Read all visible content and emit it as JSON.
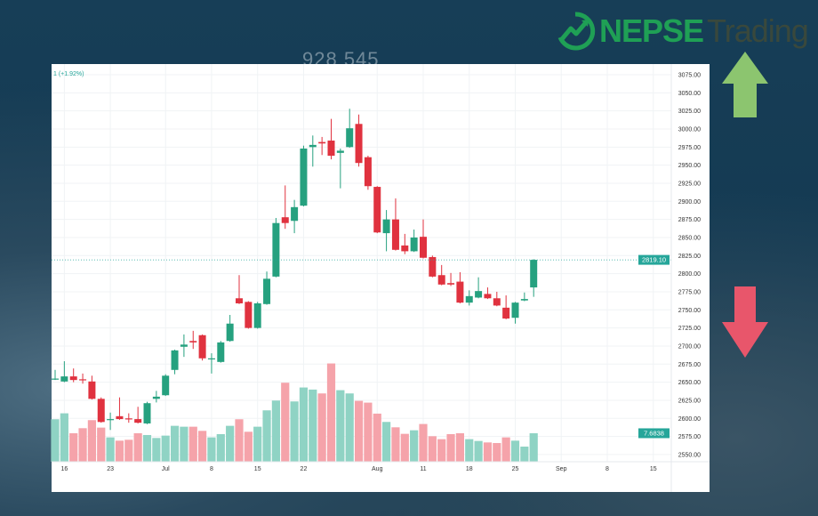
{
  "brand": {
    "name_bold": "NEPSE",
    "name_light": "Trading",
    "logo_icon": "circle-trend-arrow-icon",
    "brand_color": "#1fa055"
  },
  "watermark": "928 545",
  "header": {
    "change_text": "1 (+1.92%)"
  },
  "decor": {
    "up_arrow_color": "#8cc56f",
    "down_arrow_color": "#e8566b"
  },
  "chart_data": {
    "type": "candlestick",
    "title": "",
    "xlabel": "",
    "ylabel": "",
    "ylim": [
      2540,
      3085
    ],
    "grid": true,
    "colors": {
      "up": "#26a17f",
      "down": "#e0323f",
      "vol_up": "#8fd3c4",
      "vol_down": "#f5a3aa"
    },
    "y_ticks": [
      2550,
      2575,
      2600,
      2625,
      2650,
      2675,
      2700,
      2725,
      2750,
      2775,
      2800,
      2825,
      2850,
      2875,
      2900,
      2925,
      2950,
      2975,
      3000,
      3025,
      3050,
      3075
    ],
    "x_ticks": [
      {
        "label": "16",
        "index": 1
      },
      {
        "label": "23",
        "index": 6
      },
      {
        "label": "Jul",
        "index": 12
      },
      {
        "label": "8",
        "index": 17
      },
      {
        "label": "15",
        "index": 22
      },
      {
        "label": "22",
        "index": 27
      },
      {
        "label": "Aug",
        "index": 35
      },
      {
        "label": "11",
        "index": 40
      },
      {
        "label": "18",
        "index": 45
      },
      {
        "label": "25",
        "index": 50
      },
      {
        "label": "Sep",
        "index": 55
      },
      {
        "label": "8",
        "index": 60
      },
      {
        "label": "15",
        "index": 65
      }
    ],
    "last_price_label": "2819.10",
    "last_price": 2819.1,
    "last_volume_label": "7.6838",
    "ohlc": [
      [
        2654,
        2667,
        2653,
        2655
      ],
      [
        2651,
        2679,
        2650,
        2658
      ],
      [
        2658,
        2669,
        2650,
        2653
      ],
      [
        2654,
        2662,
        2648,
        2653
      ],
      [
        2651,
        2659,
        2626,
        2627
      ],
      [
        2627,
        2629,
        2594,
        2595
      ],
      [
        2598,
        2608,
        2584,
        2599
      ],
      [
        2603,
        2629,
        2598,
        2599
      ],
      [
        2600,
        2607,
        2594,
        2599
      ],
      [
        2599,
        2616,
        2593,
        2594
      ],
      [
        2593,
        2623,
        2592,
        2621
      ],
      [
        2627,
        2638,
        2622,
        2630
      ],
      [
        2632,
        2661,
        2631,
        2659
      ],
      [
        2667,
        2695,
        2661,
        2694
      ],
      [
        2699,
        2716,
        2685,
        2702
      ],
      [
        2707,
        2721,
        2696,
        2705
      ],
      [
        2715,
        2716,
        2680,
        2683
      ],
      [
        2683,
        2690,
        2662,
        2683
      ],
      [
        2678,
        2707,
        2677,
        2705
      ],
      [
        2707,
        2743,
        2706,
        2731
      ],
      [
        2766,
        2798,
        2758,
        2759
      ],
      [
        2761,
        2762,
        2724,
        2725
      ],
      [
        2725,
        2761,
        2724,
        2759
      ],
      [
        2758,
        2803,
        2757,
        2793
      ],
      [
        2796,
        2877,
        2795,
        2870
      ],
      [
        2878,
        2922,
        2862,
        2870
      ],
      [
        2873,
        2902,
        2856,
        2892
      ],
      [
        2894,
        2977,
        2893,
        2973
      ],
      [
        2975,
        2991,
        2948,
        2978
      ],
      [
        2982,
        2989,
        2964,
        2980
      ],
      [
        2984,
        3014,
        2958,
        2963
      ],
      [
        2967,
        2973,
        2918,
        2970
      ],
      [
        2975,
        3028,
        2974,
        3001
      ],
      [
        3007,
        3020,
        2948,
        2953
      ],
      [
        2961,
        2963,
        2916,
        2921
      ],
      [
        2920,
        2921,
        2856,
        2857
      ],
      [
        2856,
        2888,
        2831,
        2875
      ],
      [
        2875,
        2904,
        2832,
        2833
      ],
      [
        2839,
        2855,
        2827,
        2831
      ],
      [
        2831,
        2861,
        2830,
        2850
      ],
      [
        2851,
        2875,
        2821,
        2822
      ],
      [
        2823,
        2825,
        2795,
        2796
      ],
      [
        2798,
        2812,
        2784,
        2785
      ],
      [
        2787,
        2801,
        2783,
        2785
      ],
      [
        2789,
        2802,
        2759,
        2760
      ],
      [
        2760,
        2777,
        2756,
        2769
      ],
      [
        2767,
        2795,
        2766,
        2776
      ],
      [
        2772,
        2781,
        2765,
        2766
      ],
      [
        2766,
        2775,
        2755,
        2756
      ],
      [
        2753,
        2770,
        2737,
        2738
      ],
      [
        2739,
        2761,
        2731,
        2760
      ],
      [
        2763,
        2774,
        2762,
        2765
      ],
      [
        2781,
        2820,
        2768,
        2819.1
      ]
    ],
    "volume": [
      11.45,
      13.05,
      7.68,
      9.04,
      11.21,
      9.2,
      6.56,
      5.68,
      5.92,
      7.68,
      7.2,
      6.4,
      7.04,
      9.68,
      9.44,
      9.44,
      8.32,
      6.56,
      7.44,
      9.68,
      11.45,
      8.08,
      9.44,
      13.85,
      16.49,
      21.29,
      16.25,
      20.01,
      19.45,
      18.41,
      26.49,
      19.29,
      18.41,
      16.41,
      15.93,
      12.97,
      10.73,
      9.28,
      7.52,
      8.48,
      10.17,
      6.88,
      6.08,
      7.44,
      7.68,
      6.08,
      5.6,
      5.2,
      5.04,
      6.56,
      5.68,
      4.08,
      7.6838
    ]
  }
}
